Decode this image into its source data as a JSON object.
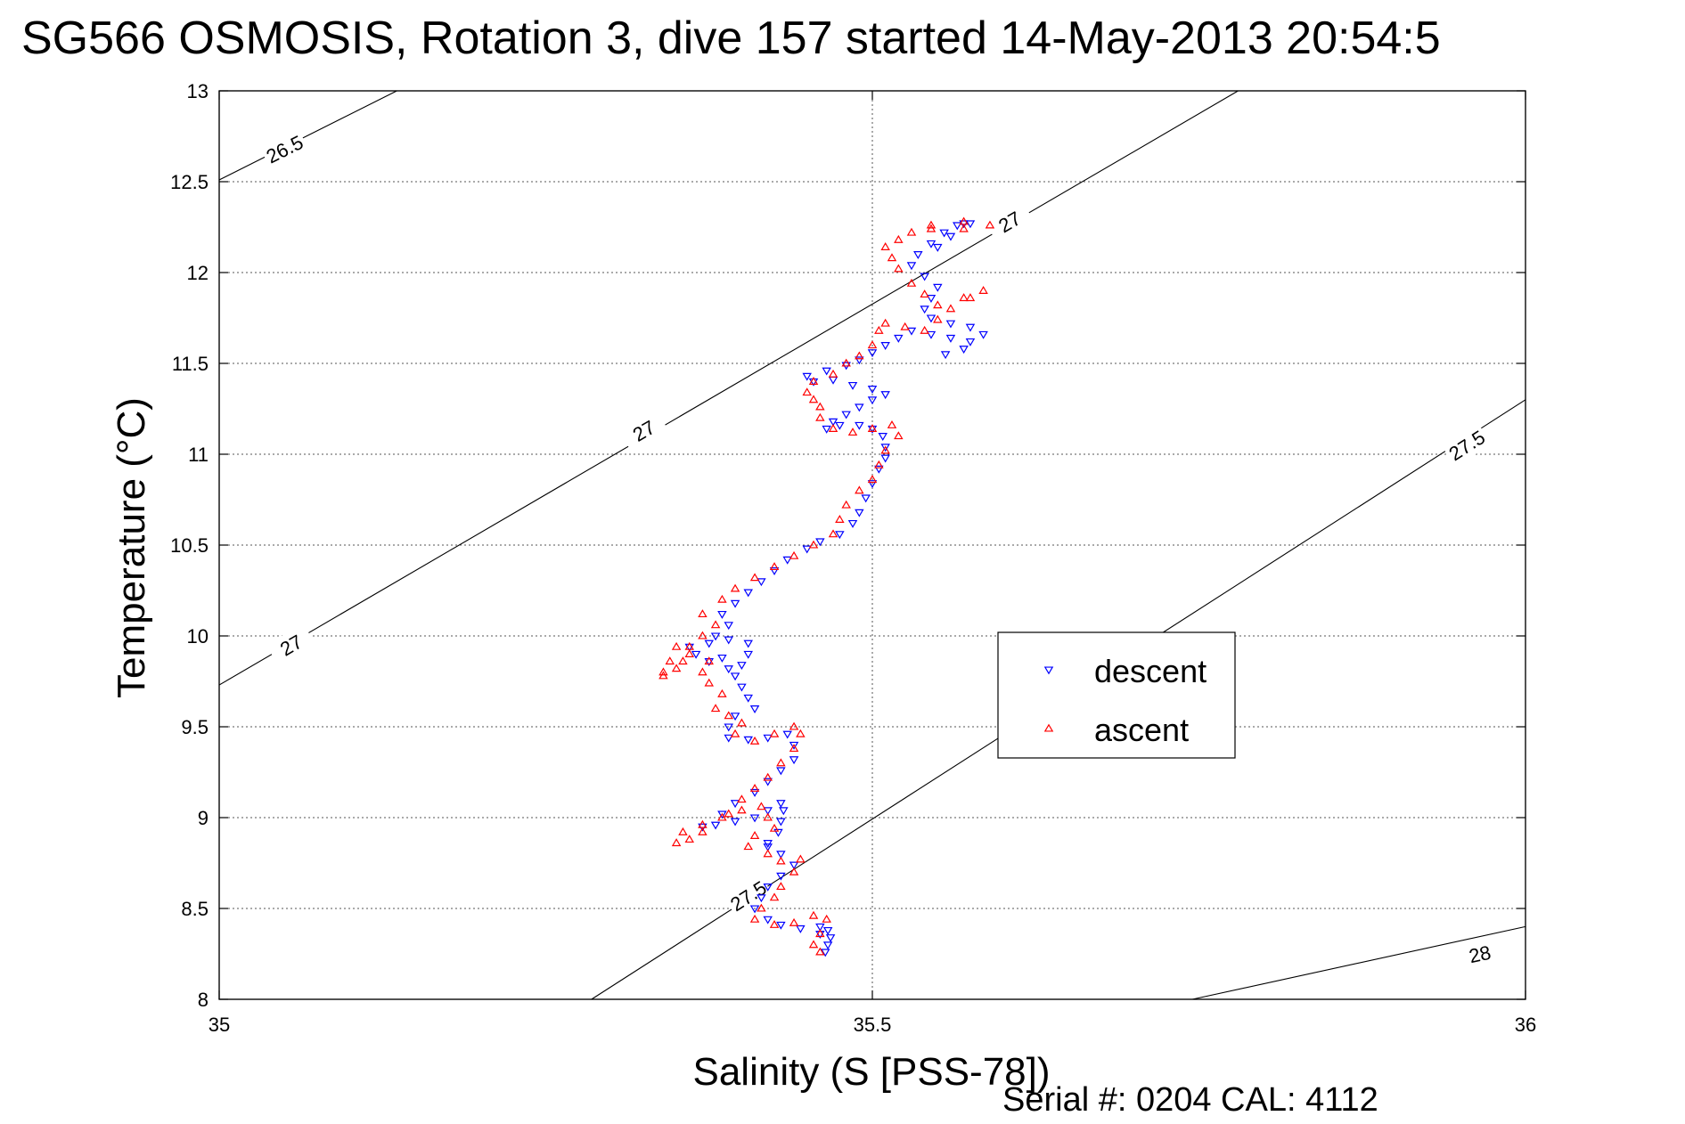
{
  "chart_data": {
    "type": "scatter",
    "title": "SG566 OSMOSIS, Rotation 3, dive 157 started 14-May-2013 20:54:5",
    "xlabel": "Salinity (S [PSS-78])",
    "ylabel": "Temperature (°C)",
    "footer": "Serial #: 0204  CAL: 4112",
    "xlim": [
      35,
      36
    ],
    "ylim": [
      8,
      13
    ],
    "x_ticks": [
      35,
      35.5,
      36
    ],
    "x_tick_labels": [
      "35",
      "35.5",
      "36"
    ],
    "y_ticks": [
      8,
      8.5,
      9,
      9.5,
      10,
      10.5,
      11,
      11.5,
      12,
      12.5,
      13
    ],
    "y_tick_labels": [
      "8",
      "8.5",
      "9",
      "9.5",
      "10",
      "10.5",
      "11",
      "11.5",
      "12",
      "12.5",
      "13"
    ],
    "grid": true,
    "legend_position": "center-right",
    "density_contours": [
      {
        "label": "26.5",
        "points": [
          [
            35,
            12.51
          ],
          [
            35.136,
            13
          ]
        ],
        "label_at": [
          35.05,
          12.68
        ]
      },
      {
        "label": "27",
        "points": [
          [
            35,
            9.73
          ],
          [
            35.78,
            13
          ]
        ],
        "label_at": [
          [
            35.055,
            9.95
          ],
          [
            35.325,
            11.13
          ],
          [
            35.605,
            12.28
          ]
        ]
      },
      {
        "label": "27.5",
        "points": [
          [
            35.285,
            8
          ],
          [
            36,
            11.3
          ]
        ],
        "label_at": [
          [
            35.405,
            8.57
          ],
          [
            35.955,
            11.05
          ]
        ]
      },
      {
        "label": "28",
        "points": [
          [
            35.745,
            8
          ],
          [
            36,
            8.4
          ]
        ],
        "label_at": [
          35.965,
          8.25
        ]
      }
    ],
    "series": [
      {
        "name": "descent",
        "color": "#0000ff",
        "marker": "triangle-down",
        "points": [
          [
            35.464,
            8.26
          ],
          [
            35.466,
            8.3
          ],
          [
            35.468,
            8.34
          ],
          [
            35.466,
            8.38
          ],
          [
            35.46,
            8.4
          ],
          [
            35.445,
            8.39
          ],
          [
            35.43,
            8.41
          ],
          [
            35.42,
            8.44
          ],
          [
            35.41,
            8.5
          ],
          [
            35.415,
            8.56
          ],
          [
            35.42,
            8.62
          ],
          [
            35.43,
            8.68
          ],
          [
            35.44,
            8.74
          ],
          [
            35.43,
            8.8
          ],
          [
            35.42,
            8.86
          ],
          [
            35.428,
            8.92
          ],
          [
            35.43,
            8.98
          ],
          [
            35.432,
            9.04
          ],
          [
            35.43,
            9.08
          ],
          [
            35.42,
            9.04
          ],
          [
            35.41,
            9.0
          ],
          [
            35.395,
            8.98
          ],
          [
            35.38,
            8.96
          ],
          [
            35.37,
            8.95
          ],
          [
            35.385,
            9.02
          ],
          [
            35.395,
            9.08
          ],
          [
            35.41,
            9.14
          ],
          [
            35.42,
            9.2
          ],
          [
            35.43,
            9.26
          ],
          [
            35.44,
            9.32
          ],
          [
            35.44,
            9.4
          ],
          [
            35.435,
            9.46
          ],
          [
            35.42,
            9.44
          ],
          [
            35.405,
            9.43
          ],
          [
            35.39,
            9.44
          ],
          [
            35.39,
            9.5
          ],
          [
            35.395,
            9.56
          ],
          [
            35.41,
            9.6
          ],
          [
            35.405,
            9.66
          ],
          [
            35.4,
            9.72
          ],
          [
            35.395,
            9.78
          ],
          [
            35.4,
            9.84
          ],
          [
            35.405,
            9.9
          ],
          [
            35.405,
            9.96
          ],
          [
            35.39,
            9.98
          ],
          [
            35.375,
            9.96
          ],
          [
            35.36,
            9.94
          ],
          [
            35.365,
            9.9
          ],
          [
            35.375,
            9.86
          ],
          [
            35.39,
            9.82
          ],
          [
            35.385,
            9.88
          ],
          [
            35.38,
            10.0
          ],
          [
            35.39,
            10.06
          ],
          [
            35.385,
            10.12
          ],
          [
            35.395,
            10.18
          ],
          [
            35.405,
            10.24
          ],
          [
            35.415,
            10.3
          ],
          [
            35.425,
            10.36
          ],
          [
            35.435,
            10.42
          ],
          [
            35.45,
            10.48
          ],
          [
            35.46,
            10.52
          ],
          [
            35.475,
            10.56
          ],
          [
            35.485,
            10.62
          ],
          [
            35.49,
            10.68
          ],
          [
            35.495,
            10.76
          ],
          [
            35.5,
            10.84
          ],
          [
            35.505,
            10.92
          ],
          [
            35.51,
            10.98
          ],
          [
            35.51,
            11.04
          ],
          [
            35.508,
            11.1
          ],
          [
            35.5,
            11.14
          ],
          [
            35.49,
            11.16
          ],
          [
            35.475,
            11.16
          ],
          [
            35.465,
            11.14
          ],
          [
            35.47,
            11.18
          ],
          [
            35.48,
            11.22
          ],
          [
            35.49,
            11.26
          ],
          [
            35.5,
            11.3
          ],
          [
            35.51,
            11.33
          ],
          [
            35.5,
            11.36
          ],
          [
            35.485,
            11.38
          ],
          [
            35.47,
            11.41
          ],
          [
            35.455,
            11.4
          ],
          [
            35.45,
            11.43
          ],
          [
            35.465,
            11.46
          ],
          [
            35.48,
            11.49
          ],
          [
            35.49,
            11.52
          ],
          [
            35.5,
            11.56
          ],
          [
            35.51,
            11.6
          ],
          [
            35.52,
            11.64
          ],
          [
            35.53,
            11.68
          ],
          [
            35.545,
            11.66
          ],
          [
            35.56,
            11.64
          ],
          [
            35.575,
            11.62
          ],
          [
            35.585,
            11.66
          ],
          [
            35.575,
            11.7
          ],
          [
            35.56,
            11.72
          ],
          [
            35.545,
            11.75
          ],
          [
            35.54,
            11.8
          ],
          [
            35.545,
            11.86
          ],
          [
            35.55,
            11.92
          ],
          [
            35.54,
            11.98
          ],
          [
            35.53,
            12.04
          ],
          [
            35.535,
            12.1
          ],
          [
            35.545,
            12.16
          ],
          [
            35.555,
            12.22
          ],
          [
            35.565,
            12.26
          ],
          [
            35.57,
            12.27
          ],
          [
            35.575,
            12.27
          ],
          [
            35.56,
            12.2
          ],
          [
            35.55,
            12.14
          ],
          [
            35.556,
            11.55
          ],
          [
            35.57,
            11.58
          ],
          [
            35.42,
            8.84
          ],
          [
            35.46,
            8.36
          ]
        ]
      },
      {
        "name": "ascent",
        "color": "#ff0000",
        "marker": "triangle-up",
        "points": [
          [
            35.46,
            8.26
          ],
          [
            35.455,
            8.3
          ],
          [
            35.46,
            8.36
          ],
          [
            35.465,
            8.44
          ],
          [
            35.455,
            8.46
          ],
          [
            35.44,
            8.42
          ],
          [
            35.425,
            8.41
          ],
          [
            35.41,
            8.44
          ],
          [
            35.415,
            8.5
          ],
          [
            35.425,
            8.56
          ],
          [
            35.43,
            8.62
          ],
          [
            35.44,
            8.7
          ],
          [
            35.445,
            8.77
          ],
          [
            35.43,
            8.76
          ],
          [
            35.42,
            8.8
          ],
          [
            35.405,
            8.84
          ],
          [
            35.41,
            8.9
          ],
          [
            35.425,
            8.94
          ],
          [
            35.42,
            9.0
          ],
          [
            35.415,
            9.06
          ],
          [
            35.4,
            9.04
          ],
          [
            35.385,
            9.0
          ],
          [
            35.37,
            8.92
          ],
          [
            35.36,
            8.88
          ],
          [
            35.35,
            8.86
          ],
          [
            35.355,
            8.92
          ],
          [
            35.37,
            8.96
          ],
          [
            35.39,
            9.02
          ],
          [
            35.4,
            9.1
          ],
          [
            35.41,
            9.16
          ],
          [
            35.42,
            9.22
          ],
          [
            35.43,
            9.3
          ],
          [
            35.44,
            9.38
          ],
          [
            35.445,
            9.46
          ],
          [
            35.44,
            9.5
          ],
          [
            35.425,
            9.46
          ],
          [
            35.41,
            9.42
          ],
          [
            35.395,
            9.46
          ],
          [
            35.4,
            9.52
          ],
          [
            35.39,
            9.56
          ],
          [
            35.38,
            9.6
          ],
          [
            35.385,
            9.68
          ],
          [
            35.375,
            9.74
          ],
          [
            35.37,
            9.8
          ],
          [
            35.375,
            9.86
          ],
          [
            35.36,
            9.9
          ],
          [
            35.345,
            9.86
          ],
          [
            35.34,
            9.8
          ],
          [
            35.35,
            9.82
          ],
          [
            35.355,
            9.86
          ],
          [
            35.36,
            9.94
          ],
          [
            35.37,
            10.0
          ],
          [
            35.38,
            10.06
          ],
          [
            35.37,
            10.12
          ],
          [
            35.385,
            10.2
          ],
          [
            35.395,
            10.26
          ],
          [
            35.41,
            10.32
          ],
          [
            35.425,
            10.38
          ],
          [
            35.44,
            10.44
          ],
          [
            35.455,
            10.5
          ],
          [
            35.47,
            10.56
          ],
          [
            35.475,
            10.64
          ],
          [
            35.48,
            10.72
          ],
          [
            35.49,
            10.8
          ],
          [
            35.5,
            10.86
          ],
          [
            35.505,
            10.94
          ],
          [
            35.51,
            11.02
          ],
          [
            35.52,
            11.1
          ],
          [
            35.515,
            11.16
          ],
          [
            35.5,
            11.14
          ],
          [
            35.485,
            11.12
          ],
          [
            35.47,
            11.14
          ],
          [
            35.46,
            11.2
          ],
          [
            35.46,
            11.26
          ],
          [
            35.455,
            11.3
          ],
          [
            35.45,
            11.34
          ],
          [
            35.455,
            11.4
          ],
          [
            35.47,
            11.44
          ],
          [
            35.48,
            11.5
          ],
          [
            35.49,
            11.54
          ],
          [
            35.5,
            11.6
          ],
          [
            35.505,
            11.68
          ],
          [
            35.51,
            11.72
          ],
          [
            35.525,
            11.7
          ],
          [
            35.54,
            11.68
          ],
          [
            35.55,
            11.74
          ],
          [
            35.56,
            11.8
          ],
          [
            35.575,
            11.86
          ],
          [
            35.585,
            11.9
          ],
          [
            35.57,
            11.86
          ],
          [
            35.55,
            11.82
          ],
          [
            35.54,
            11.88
          ],
          [
            35.53,
            11.94
          ],
          [
            35.52,
            12.02
          ],
          [
            35.515,
            12.08
          ],
          [
            35.51,
            12.14
          ],
          [
            35.52,
            12.18
          ],
          [
            35.53,
            12.22
          ],
          [
            35.545,
            12.26
          ],
          [
            35.57,
            12.28
          ],
          [
            35.59,
            12.26
          ],
          [
            35.57,
            12.24
          ],
          [
            35.545,
            12.24
          ],
          [
            35.34,
            9.78
          ],
          [
            35.35,
            9.94
          ]
        ]
      }
    ]
  }
}
